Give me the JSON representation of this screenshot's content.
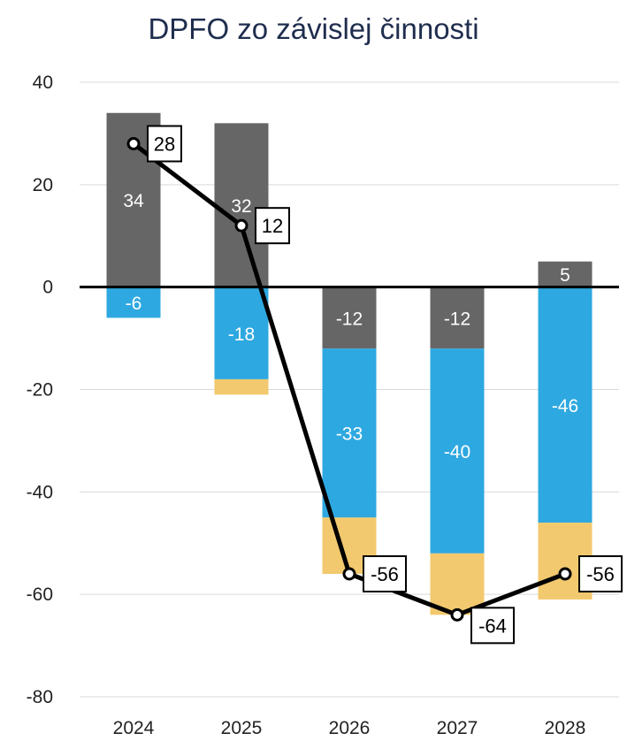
{
  "chart_data": {
    "type": "bar",
    "title": "DPFO zo závislej činnosti",
    "categories": [
      "2024",
      "2025",
      "2026",
      "2027",
      "2028"
    ],
    "ylim": [
      -80,
      40
    ],
    "yticks": [
      40,
      20,
      0,
      -20,
      -40,
      -60,
      -80
    ],
    "grid": true,
    "legend": "none",
    "colors": {
      "gray": "#666666",
      "blue": "#2ea8e0",
      "yellow": "#f2c96e",
      "line": "#000000"
    },
    "series": [
      {
        "color": "gray",
        "values": [
          34,
          32,
          -12,
          -12,
          5
        ],
        "labels": [
          "34",
          "32",
          "-12",
          "-12",
          "5"
        ]
      },
      {
        "color": "blue",
        "values": [
          -6,
          -18,
          -33,
          -40,
          -46
        ],
        "labels": [
          "-6",
          "-18",
          "-33",
          "-40",
          "-46"
        ]
      },
      {
        "color": "yellow",
        "values": [
          0,
          -3,
          -11,
          -12,
          -15
        ],
        "labels": [
          "",
          "",
          "",
          "",
          ""
        ]
      }
    ],
    "line": {
      "values": [
        28,
        12,
        -56,
        -64,
        -56
      ],
      "labels": [
        "28",
        "12",
        "-56",
        "-64",
        "-56"
      ]
    }
  }
}
